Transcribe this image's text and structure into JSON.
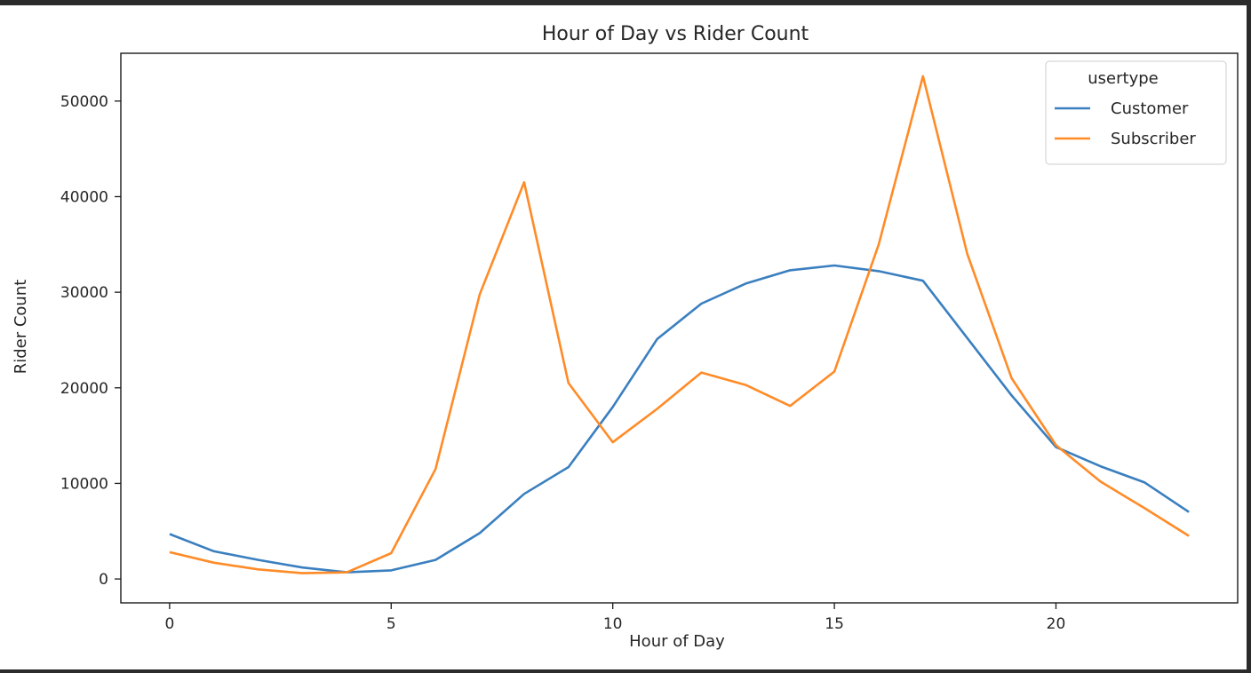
{
  "chart_data": {
    "type": "line",
    "title": "Hour of Day vs Rider Count",
    "xlabel": "Hour of Day",
    "ylabel": "Rider Count",
    "xlim": [
      -1.1,
      24.1
    ],
    "ylim": [
      -2500,
      55000
    ],
    "xticks": [
      0,
      5,
      10,
      15,
      20
    ],
    "yticks": [
      0,
      10000,
      20000,
      30000,
      40000,
      50000
    ],
    "x": [
      0,
      1,
      2,
      3,
      4,
      5,
      6,
      7,
      8,
      9,
      10,
      11,
      12,
      13,
      14,
      15,
      16,
      17,
      18,
      19,
      20,
      21,
      22,
      23
    ],
    "legend": {
      "title": "usertype",
      "position": "top-right"
    },
    "grid": false,
    "series": [
      {
        "name": "Customer",
        "color": "#3a7fbf",
        "values": [
          4700,
          2900,
          2000,
          1200,
          700,
          900,
          2000,
          4800,
          8900,
          11700,
          18000,
          25100,
          28800,
          30900,
          32300,
          32800,
          32200,
          31200,
          25200,
          19200,
          13800,
          11800,
          10100,
          7000
        ]
      },
      {
        "name": "Subscriber",
        "color": "#ff8b27",
        "values": [
          2800,
          1700,
          1000,
          600,
          700,
          2700,
          11500,
          29800,
          41500,
          20500,
          14300,
          17800,
          21600,
          20300,
          18100,
          21700,
          35000,
          52600,
          34000,
          21000,
          14000,
          10200,
          7400,
          4500
        ]
      }
    ]
  }
}
